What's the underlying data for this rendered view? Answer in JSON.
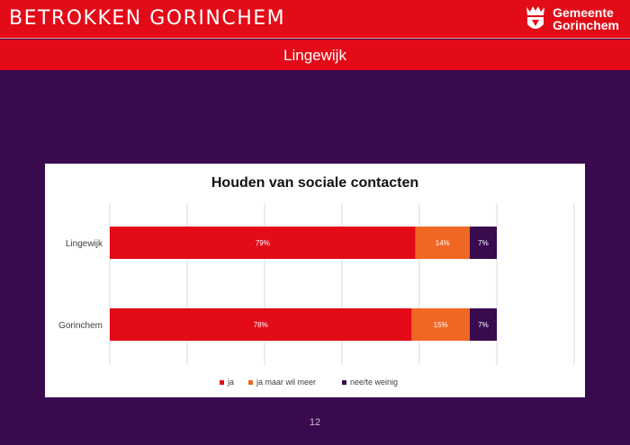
{
  "header": {
    "title": "BETROKKEN GORINCHEM",
    "logo_line1": "Gemeente",
    "logo_line2": "Gorinchem",
    "subtitle": "Lingewijk"
  },
  "colors": {
    "brand_red": "#e30b17",
    "background_purple": "#3a0a4e",
    "series_ja": "#e30b17",
    "series_meer": "#f06723",
    "series_weinig": "#3a0a4e"
  },
  "chart_data": {
    "type": "bar",
    "orientation": "horizontal",
    "stacked": true,
    "title": "Houden van sociale contacten",
    "categories": [
      "Lingewijk",
      "Gorinchem"
    ],
    "series": [
      {
        "name": "ja",
        "values": [
          79,
          78
        ],
        "labels": [
          "79%",
          "78%"
        ]
      },
      {
        "name": "ja maar wil meer",
        "values": [
          14,
          15
        ],
        "labels": [
          "14%",
          "15%"
        ]
      },
      {
        "name": "nee/te weinig",
        "values": [
          7,
          7
        ],
        "labels": [
          "7%",
          "7%"
        ]
      }
    ],
    "xlim": [
      0,
      120
    ],
    "grid": true,
    "legend": "bottom"
  },
  "footer": {
    "page_number": "12"
  }
}
